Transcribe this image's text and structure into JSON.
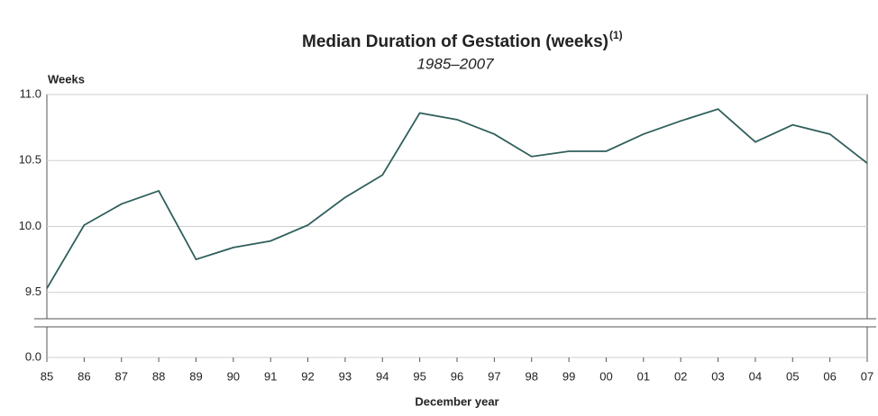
{
  "chart_data": {
    "type": "line",
    "title": "Median Duration of Gestation (weeks)",
    "title_note": "(1)",
    "subtitle": "1985–2007",
    "y_label": "Weeks",
    "x_label": "December year",
    "categories": [
      "85",
      "86",
      "87",
      "88",
      "89",
      "90",
      "91",
      "92",
      "93",
      "94",
      "95",
      "96",
      "97",
      "98",
      "99",
      "00",
      "01",
      "02",
      "03",
      "04",
      "05",
      "06",
      "07"
    ],
    "series": [
      {
        "name": "Median duration",
        "color": "#2f5f5c",
        "values": [
          9.53,
          10.01,
          10.17,
          10.27,
          9.75,
          9.84,
          9.89,
          10.01,
          10.22,
          10.39,
          10.86,
          10.81,
          10.7,
          10.53,
          10.57,
          10.57,
          10.7,
          10.8,
          10.89,
          10.64,
          10.77,
          10.7,
          10.48
        ]
      }
    ],
    "ylim": [
      0,
      11
    ],
    "ybreak": [
      0.25,
      9.3
    ],
    "yticks": [
      {
        "value": 0,
        "label": "0.0"
      },
      9.5,
      {
        "value": 10,
        "label": "10.0"
      },
      10.5,
      {
        "value": 11,
        "label": "11.0"
      }
    ],
    "grid": true
  }
}
